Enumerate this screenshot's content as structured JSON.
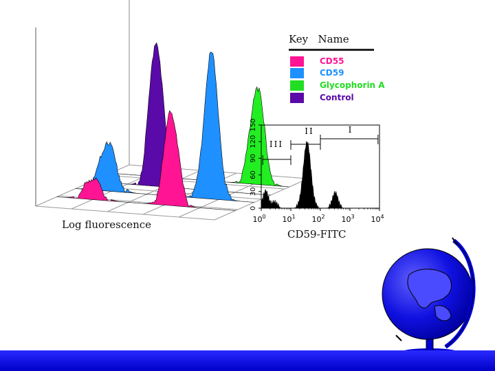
{
  "chart_data": [
    {
      "type": "area",
      "title": "",
      "xlabel": "Log fluorescence",
      "ylabel": "",
      "series": [
        {
          "name": "CD55",
          "color": "#ff1493",
          "peaks": [
            {
              "x": 1.0,
              "height": 0.25
            },
            {
              "x": 3.2,
              "height": 1.0
            }
          ]
        },
        {
          "name": "CD59",
          "color": "#1e90ff",
          "peaks": [
            {
              "x": 0.9,
              "height": 0.35
            },
            {
              "x": 3.8,
              "height": 1.0
            }
          ]
        },
        {
          "name": "Glycophorin A",
          "color": "#22ee22",
          "peaks": [
            {
              "x": 4.1,
              "height": 1.0
            }
          ]
        },
        {
          "name": "Control",
          "color": "#5a0aa8",
          "peaks": [
            {
              "x": 1.8,
              "height": 1.0
            }
          ]
        }
      ]
    },
    {
      "type": "area",
      "title": "",
      "xlabel": "CD59-FITC",
      "ylabel": "",
      "xscale": "log",
      "xlim": [
        0,
        4
      ],
      "x_tick_labels": [
        {
          "base": "10",
          "exp": "0"
        },
        {
          "base": "10",
          "exp": "1"
        },
        {
          "base": "10",
          "exp": "2"
        },
        {
          "base": "10",
          "exp": "3"
        },
        {
          "base": "10",
          "exp": "4"
        }
      ],
      "ylim": [
        0,
        150
      ],
      "y_ticks": [
        "0",
        "30",
        "60",
        "90",
        "120",
        "150"
      ],
      "series": [
        {
          "name": "CD59-FITC",
          "color": "#000000",
          "peaks": [
            {
              "x": 0.15,
              "value": 30
            },
            {
              "x": 0.45,
              "value": 10
            },
            {
              "x": 1.55,
              "value": 118
            },
            {
              "x": 2.5,
              "value": 27
            }
          ]
        }
      ],
      "gates": [
        {
          "label": "III",
          "x_start": 0.05,
          "x_end": 1.0
        },
        {
          "label": "II",
          "x_start": 1.0,
          "x_end": 2.0
        },
        {
          "label": "I",
          "x_start": 2.0,
          "x_end": 3.95
        }
      ]
    }
  ],
  "legend": {
    "title": "Key   Name",
    "items": [
      {
        "label": "CD55",
        "color": "#ff1493"
      },
      {
        "label": "CD59",
        "color": "#1e90ff"
      },
      {
        "label": "Glycophorin A",
        "color": "#22dd22"
      },
      {
        "label": "Control",
        "color": "#5a0aa8"
      }
    ]
  },
  "decoration": {
    "globe": "globe-icon",
    "footer_color": "#0000d8"
  }
}
